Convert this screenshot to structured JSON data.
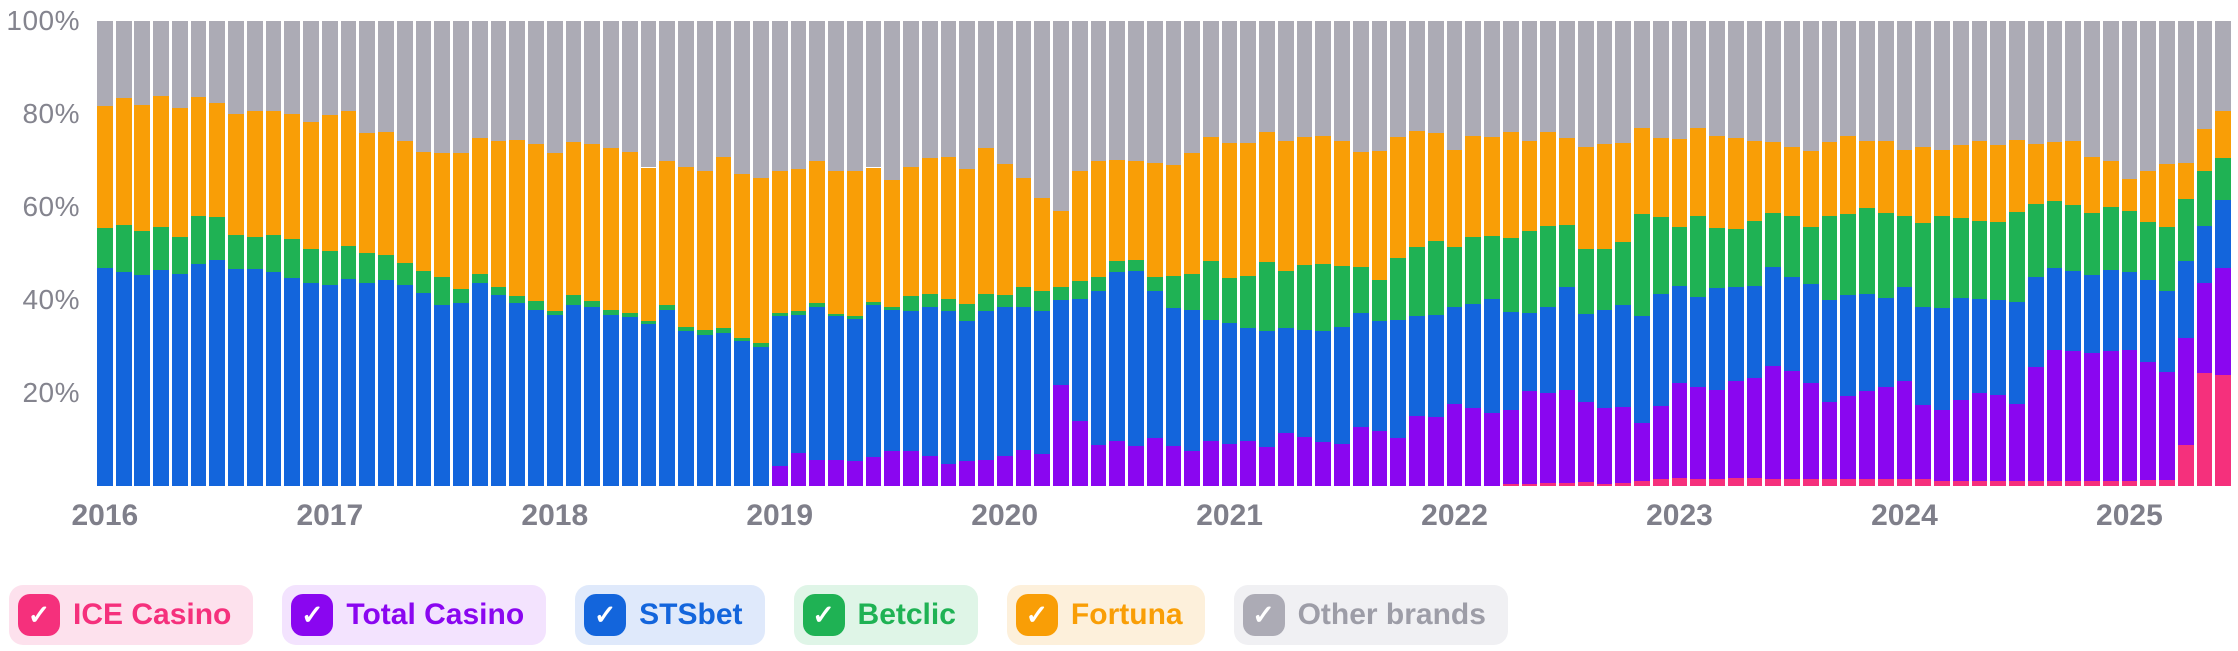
{
  "chart_data": {
    "type": "bar",
    "variant": "stacked-100-percent",
    "unit": "%",
    "ylim": [
      0,
      100
    ],
    "grid": false,
    "legend_position": "bottom",
    "title": "",
    "xlabel": "",
    "ylabel": "",
    "y_ticks": [
      "100%",
      "80%",
      "60%",
      "40%",
      "20%"
    ],
    "y_tick_values": [
      100,
      80,
      60,
      40,
      20
    ],
    "x_year_labels": [
      "2016",
      "2017",
      "2018",
      "2019",
      "2020",
      "2021",
      "2022",
      "2023",
      "2024",
      "2025"
    ],
    "x": [
      "2016-01",
      "2016-02",
      "2016-03",
      "2016-04",
      "2016-05",
      "2016-06",
      "2016-07",
      "2016-08",
      "2016-09",
      "2016-10",
      "2016-11",
      "2016-12",
      "2017-01",
      "2017-02",
      "2017-03",
      "2017-04",
      "2017-05",
      "2017-06",
      "2017-07",
      "2017-08",
      "2017-09",
      "2017-10",
      "2017-11",
      "2017-12",
      "2018-01",
      "2018-02",
      "2018-03",
      "2018-04",
      "2018-05",
      "2018-06",
      "2018-07",
      "2018-08",
      "2018-09",
      "2018-10",
      "2018-11",
      "2018-12",
      "2019-01",
      "2019-02",
      "2019-03",
      "2019-04",
      "2019-05",
      "2019-06",
      "2019-07",
      "2019-08",
      "2019-09",
      "2019-10",
      "2019-11",
      "2019-12",
      "2020-01",
      "2020-02",
      "2020-03",
      "2020-04",
      "2020-05",
      "2020-06",
      "2020-07",
      "2020-08",
      "2020-09",
      "2020-10",
      "2020-11",
      "2020-12",
      "2021-01",
      "2021-02",
      "2021-03",
      "2021-04",
      "2021-05",
      "2021-06",
      "2021-07",
      "2021-08",
      "2021-09",
      "2021-10",
      "2021-11",
      "2021-12",
      "2022-01",
      "2022-02",
      "2022-03",
      "2022-04",
      "2022-05",
      "2022-06",
      "2022-07",
      "2022-08",
      "2022-09",
      "2022-10",
      "2022-11",
      "2022-12",
      "2023-01",
      "2023-02",
      "2023-03",
      "2023-04",
      "2023-05",
      "2023-06",
      "2023-07",
      "2023-08",
      "2023-09",
      "2023-10",
      "2023-11",
      "2023-12",
      "2024-01",
      "2024-02",
      "2024-03",
      "2024-04",
      "2024-05",
      "2024-06",
      "2024-07",
      "2024-08",
      "2024-09",
      "2024-10",
      "2024-11",
      "2024-12",
      "2025-01",
      "2025-02",
      "2025-03",
      "2025-04",
      "2025-05",
      "2025-06"
    ],
    "series": [
      {
        "name": "ICE Casino",
        "color": "#F5307C",
        "values": [
          0,
          0,
          0,
          0,
          0,
          0,
          0,
          0,
          0,
          0,
          0,
          0,
          0,
          0,
          0,
          0,
          0,
          0,
          0,
          0,
          0,
          0,
          0,
          0,
          0,
          0,
          0,
          0,
          0,
          0,
          0,
          0,
          0,
          0,
          0,
          0,
          0,
          0,
          0,
          0,
          0,
          0,
          0,
          0,
          0,
          0,
          0,
          0,
          0,
          0,
          0,
          0,
          0,
          0,
          0,
          0,
          0,
          0,
          0,
          0,
          0,
          0,
          0,
          0,
          0,
          0,
          0,
          0,
          0,
          0,
          0,
          0,
          0,
          0,
          0,
          0.5,
          0.5,
          0.7,
          0.7,
          0.8,
          0.5,
          0.7,
          1.0,
          1.5,
          1.7,
          1.5,
          1.5,
          1.7,
          1.7,
          1.5,
          1.5,
          1.5,
          1.5,
          1.5,
          1.5,
          1.5,
          1.5,
          1.5,
          1.1,
          1.1,
          1.1,
          1.1,
          1.1,
          1.1,
          1.1,
          1.1,
          1.1,
          1.1,
          1.1,
          1.3,
          1.3,
          8.8,
          24.4,
          23.9
        ]
      },
      {
        "name": "Total Casino",
        "color": "#8A06F0",
        "values": [
          0,
          0,
          0,
          0,
          0,
          0,
          0,
          0,
          0,
          0,
          0,
          0,
          0,
          0,
          0,
          0,
          0,
          0,
          0,
          0,
          0,
          0,
          0,
          0,
          0,
          0,
          0,
          0,
          0,
          0,
          0,
          0,
          0,
          0,
          0,
          0,
          4.2,
          7.1,
          5.7,
          5.7,
          5.4,
          6.2,
          7.6,
          7.5,
          6.4,
          4.7,
          5.3,
          5.7,
          6.5,
          7.8,
          6.9,
          21.8,
          14.0,
          8.9,
          9.6,
          8.7,
          10.3,
          8.5,
          7.6,
          9.6,
          9.0,
          9.7,
          8.3,
          11.4,
          10.5,
          9.4,
          9.0,
          12.6,
          11.9,
          10.3,
          15.0,
          14.8,
          17.6,
          16.8,
          15.8,
          15.9,
          19.9,
          19.4,
          20.0,
          17.2,
          16.3,
          16.2,
          12.5,
          15.8,
          20.5,
          19.9,
          19.2,
          20.9,
          21.5,
          24.4,
          23.3,
          20.7,
          16.5,
          17.8,
          19.0,
          19.9,
          21.0,
          16.0,
          15.3,
          17.5,
          18.9,
          18.5,
          16.5,
          24.4,
          28.2,
          28.0,
          27.6,
          27.9,
          28.2,
          25.3,
          23.2,
          23.0,
          19.3,
          22.9
        ]
      },
      {
        "name": "STSbet",
        "color": "#1365DC",
        "values": [
          46.9,
          46.0,
          45.4,
          46.5,
          45.7,
          47.7,
          48.7,
          46.7,
          46.7,
          46.0,
          44.7,
          43.7,
          43.2,
          44.5,
          43.7,
          44.2,
          43.3,
          41.5,
          39.0,
          39.4,
          43.7,
          41.1,
          39.4,
          37.9,
          36.8,
          39.0,
          38.4,
          36.8,
          36.3,
          34.8,
          37.9,
          33.3,
          32.5,
          32.9,
          31.1,
          30.0,
          32.3,
          29.7,
          32.9,
          30.8,
          30.6,
          32.8,
          30.3,
          30.1,
          32.0,
          33.0,
          30.2,
          32.0,
          31.9,
          30.6,
          30.8,
          18.3,
          26.2,
          33.1,
          36.4,
          37.6,
          31.6,
          29.8,
          30.3,
          26.2,
          26.1,
          24.3,
          25.0,
          22.6,
          23.0,
          24.0,
          25.1,
          24.7,
          23.5,
          25.5,
          21.6,
          22.0,
          20.8,
          22.3,
          24.4,
          21.0,
          16.9,
          18.5,
          22.0,
          19.0,
          21.1,
          22.1,
          23.0,
          24.0,
          20.9,
          19.2,
          21.9,
          20.3,
          19.9,
          21.1,
          20.1,
          21.2,
          22.0,
          21.8,
          20.8,
          19.0,
          20.2,
          21.0,
          21.9,
          21.8,
          20.2,
          20.5,
          21.9,
          19.4,
          17.6,
          17.2,
          16.7,
          17.5,
          16.7,
          17.8,
          17.4,
          16.5,
          12.3,
          14.8
        ]
      },
      {
        "name": "Betclic",
        "color": "#1FB254",
        "values": [
          8.6,
          10.2,
          9.4,
          9.2,
          7.8,
          10.4,
          9.1,
          7.3,
          6.8,
          8.0,
          8.4,
          7.3,
          7.3,
          7.1,
          6.4,
          5.5,
          4.7,
          4.8,
          5.9,
          3.0,
          1.8,
          1.8,
          1.5,
          1.8,
          0.8,
          2.1,
          1.4,
          1.1,
          0.9,
          0.7,
          1.1,
          0.9,
          1.1,
          1.1,
          0.7,
          0.8,
          0.7,
          0.8,
          0.8,
          0.5,
          0.6,
          0.6,
          0.7,
          3.2,
          2.9,
          2.5,
          3.6,
          3.6,
          2.7,
          4.3,
          4.2,
          2.6,
          3.8,
          3.0,
          2.3,
          2.4,
          3.0,
          6.9,
          7.7,
          12.5,
          9.6,
          11.1,
          14.8,
          12.3,
          14.0,
          14.4,
          13.3,
          9.7,
          8.8,
          13.2,
          14.9,
          15.8,
          13.1,
          14.4,
          13.6,
          16.0,
          17.5,
          17.4,
          13.5,
          14.0,
          13.1,
          13.4,
          22.0,
          16.5,
          12.5,
          17.4,
          12.9,
          12.4,
          14.0,
          11.7,
          13.2,
          12.2,
          18.0,
          17.4,
          18.5,
          18.3,
          15.3,
          18.0,
          19.7,
          17.2,
          16.7,
          16.6,
          19.4,
          15.7,
          14.5,
          14.2,
          13.3,
          13.4,
          13.2,
          12.3,
          13.9,
          13.4,
          11.8,
          8.9
        ]
      },
      {
        "name": "Fortuna",
        "color": "#F99E06",
        "values": [
          26.3,
          27.2,
          27.2,
          28.2,
          27.8,
          25.6,
          24.6,
          25.9,
          27.1,
          26.6,
          26.8,
          27.3,
          29.3,
          29.1,
          25.8,
          26.4,
          26.3,
          25.5,
          26.7,
          29.2,
          29.3,
          31.4,
          33.6,
          33.9,
          34.0,
          32.9,
          33.7,
          34.8,
          34.6,
          33.0,
          31.0,
          34.4,
          34.2,
          36.7,
          35.3,
          35.4,
          30.5,
          30.6,
          30.6,
          30.7,
          31.1,
          28.9,
          27.3,
          27.9,
          29.2,
          30.5,
          29.1,
          31.4,
          28.2,
          23.5,
          20.0,
          16.5,
          23.8,
          24.8,
          21.9,
          21.1,
          24.6,
          23.9,
          26.0,
          26.7,
          29.1,
          28.7,
          28.0,
          28.0,
          27.5,
          27.5,
          26.9,
          24.8,
          27.8,
          26.0,
          24.9,
          23.3,
          20.8,
          21.8,
          21.2,
          22.7,
          19.3,
          20.1,
          18.6,
          21.9,
          22.6,
          21.4,
          18.5,
          17.0,
          19.0,
          19.1,
          19.8,
          19.5,
          17.2,
          15.2,
          14.9,
          16.5,
          16.0,
          16.7,
          14.5,
          15.4,
          14.3,
          16.5,
          14.3,
          15.8,
          17.4,
          16.7,
          15.6,
          12.9,
          12.5,
          13.8,
          12.0,
          9.9,
          6.8,
          11.1,
          13.4,
          7.8,
          9.0,
          10.2
        ]
      },
      {
        "name": "Other brands",
        "color": "#ACABB5",
        "values": [
          18.2,
          16.6,
          18.0,
          16.1,
          18.7,
          16.3,
          17.6,
          20.1,
          19.4,
          19.4,
          20.1,
          21.7,
          20.2,
          19.3,
          24.1,
          23.9,
          25.7,
          28.2,
          28.4,
          28.4,
          25.2,
          25.7,
          25.5,
          26.4,
          28.4,
          26.0,
          26.5,
          27.3,
          28.2,
          31.5,
          30.0,
          31.4,
          32.2,
          29.3,
          32.9,
          33.8,
          32.3,
          31.8,
          30.0,
          32.3,
          32.3,
          31.5,
          34.1,
          31.3,
          29.5,
          29.3,
          31.8,
          27.3,
          30.7,
          33.8,
          38.1,
          40.8,
          32.2,
          30.2,
          29.8,
          30.2,
          30.5,
          30.9,
          28.4,
          25.0,
          26.2,
          26.2,
          23.9,
          25.7,
          25.0,
          24.7,
          25.7,
          28.2,
          28.0,
          25.0,
          23.6,
          24.1,
          27.7,
          24.7,
          25.0,
          23.9,
          25.9,
          23.9,
          25.2,
          27.1,
          26.4,
          26.2,
          23.0,
          25.2,
          25.4,
          22.9,
          24.7,
          25.2,
          25.7,
          26.1,
          27.0,
          27.9,
          26.0,
          24.8,
          25.7,
          25.9,
          27.7,
          27.0,
          27.7,
          26.6,
          25.7,
          26.6,
          25.5,
          26.5,
          26.1,
          25.7,
          29.3,
          30.2,
          34.0,
          32.2,
          30.8,
          30.5,
          23.2,
          19.3
        ]
      }
    ]
  },
  "legend": {
    "items": [
      {
        "label": "ICE Casino",
        "checked": true,
        "color": "#F5307C",
        "bg": "#FDE1ED",
        "text": "#F5307C",
        "check_glyph": "✓"
      },
      {
        "label": "Total Casino",
        "checked": true,
        "color": "#8A06F0",
        "bg": "#F3E3FE",
        "text": "#8A06F0",
        "check_glyph": "✓"
      },
      {
        "label": "STSbet",
        "checked": true,
        "color": "#1365DC",
        "bg": "#DFE9FB",
        "text": "#1365DC",
        "check_glyph": "✓"
      },
      {
        "label": "Betclic",
        "checked": true,
        "color": "#1FB254",
        "bg": "#DFF5E7",
        "text": "#1FB254",
        "check_glyph": "✓"
      },
      {
        "label": "Fortuna",
        "checked": true,
        "color": "#F99E06",
        "bg": "#FDF0DB",
        "text": "#F99E06",
        "check_glyph": "✓"
      },
      {
        "label": "Other brands",
        "checked": true,
        "color": "#ACABB5",
        "bg": "#F0F0F3",
        "text": "#9D9DA7",
        "check_glyph": "✓"
      }
    ]
  }
}
